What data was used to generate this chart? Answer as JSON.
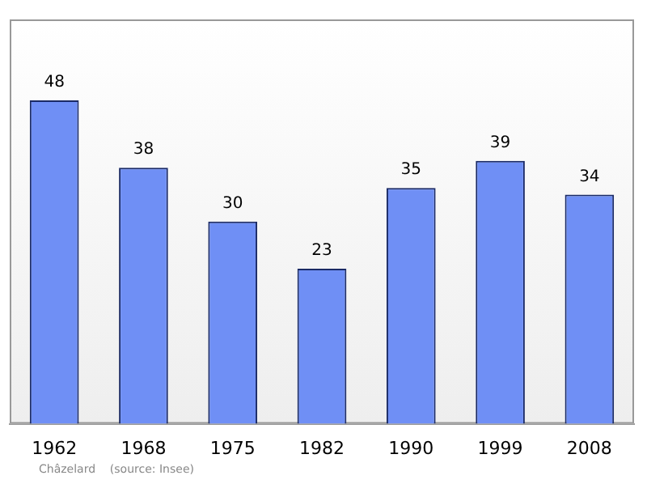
{
  "chart_data": {
    "type": "bar",
    "categories": [
      "1962",
      "1968",
      "1975",
      "1982",
      "1990",
      "1999",
      "2008"
    ],
    "values": [
      48,
      38,
      30,
      23,
      35,
      39,
      34
    ],
    "color": "#6f8ff5",
    "data_labels": true,
    "grid": false,
    "legend": false,
    "annotations": [
      "Châzelard    (source: Insee)"
    ]
  }
}
